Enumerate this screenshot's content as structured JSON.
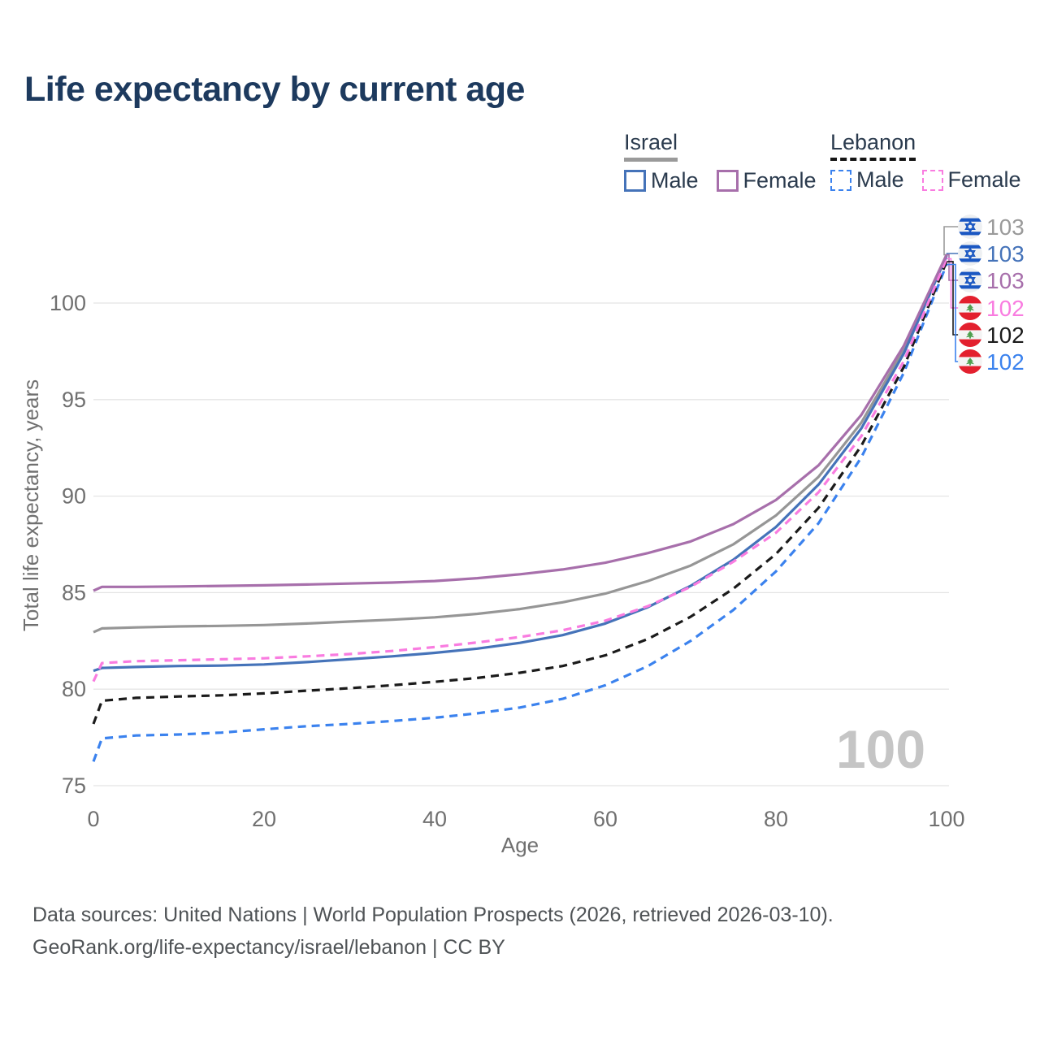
{
  "header": {
    "title": "Life expectancy by current age"
  },
  "legend": {
    "israel": {
      "label": "Israel",
      "underline_color": "#9a9a9a",
      "underline_style": "solid",
      "items": [
        {
          "label": "Male",
          "color": "#4573b9",
          "style": "solid"
        },
        {
          "label": "Female",
          "color": "#a76fab",
          "style": "solid"
        }
      ]
    },
    "lebanon": {
      "label": "Lebanon",
      "underline_color": "#151515",
      "underline_style": "dashed",
      "items": [
        {
          "label": "Male",
          "color": "#3b82ee",
          "style": "dashed"
        },
        {
          "label": "Female",
          "color": "#f97ce0",
          "style": "dashed"
        }
      ]
    }
  },
  "chart_data": {
    "type": "line",
    "title": "Life expectancy by current age",
    "xlabel": "Age",
    "ylabel": "Total life expectancy, years",
    "xlim": [
      0,
      100
    ],
    "ylim": [
      75,
      100
    ],
    "x_ticks": [
      0,
      20,
      40,
      60,
      80,
      100
    ],
    "y_ticks": [
      75,
      80,
      85,
      90,
      95,
      100
    ],
    "grid": "horizontal",
    "legend_position": "top-right",
    "watermark": "100",
    "axis_color": "#707070",
    "grid_color": "#e4e4e4",
    "watermark_color": "#c5c5c5",
    "ages": [
      0,
      1,
      5,
      10,
      15,
      20,
      25,
      30,
      35,
      40,
      45,
      50,
      55,
      60,
      65,
      70,
      75,
      80,
      85,
      90,
      95,
      100
    ],
    "series": [
      {
        "id": "israel-total",
        "name": "Israel",
        "color": "#969696",
        "dashed": false,
        "values": [
          82.95,
          83.15,
          83.2,
          83.25,
          83.28,
          83.32,
          83.4,
          83.5,
          83.6,
          83.72,
          83.9,
          84.15,
          84.5,
          84.95,
          85.6,
          86.4,
          87.5,
          89.0,
          91.0,
          93.8,
          97.6,
          102.5
        ]
      },
      {
        "id": "israel-male",
        "name": "Israel Male",
        "color": "#4573b9",
        "dashed": false,
        "values": [
          80.95,
          81.1,
          81.15,
          81.2,
          81.22,
          81.28,
          81.4,
          81.55,
          81.7,
          81.88,
          82.1,
          82.4,
          82.8,
          83.4,
          84.25,
          85.35,
          86.7,
          88.4,
          90.6,
          93.5,
          97.4,
          102.45
        ]
      },
      {
        "id": "lebanon-male",
        "name": "Lebanon Male",
        "color": "#3b82ee",
        "dashed": true,
        "values": [
          76.25,
          77.45,
          77.6,
          77.65,
          77.75,
          77.92,
          78.08,
          78.2,
          78.35,
          78.52,
          78.75,
          79.05,
          79.5,
          80.2,
          81.2,
          82.5,
          84.1,
          86.1,
          88.6,
          92.0,
          96.4,
          102.0
        ]
      },
      {
        "id": "lebanon-total",
        "name": "Lebanon",
        "color": "#1b1b1b",
        "dashed": true,
        "values": [
          78.2,
          79.4,
          79.55,
          79.62,
          79.68,
          79.78,
          79.92,
          80.05,
          80.2,
          80.38,
          80.58,
          80.85,
          81.2,
          81.75,
          82.6,
          83.75,
          85.2,
          87.0,
          89.4,
          92.6,
          96.7,
          102.15
        ]
      },
      {
        "id": "lebanon-female",
        "name": "Lebanon Female",
        "color": "#f97ce0",
        "dashed": true,
        "values": [
          80.4,
          81.35,
          81.45,
          81.5,
          81.55,
          81.6,
          81.7,
          81.82,
          81.98,
          82.18,
          82.42,
          82.7,
          83.05,
          83.55,
          84.3,
          85.3,
          86.6,
          88.1,
          90.2,
          93.1,
          97.0,
          102.3
        ]
      },
      {
        "id": "israel-female",
        "name": "Israel Female",
        "color": "#a76fab",
        "dashed": false,
        "values": [
          85.1,
          85.3,
          85.3,
          85.32,
          85.35,
          85.38,
          85.42,
          85.47,
          85.52,
          85.6,
          85.75,
          85.95,
          86.2,
          86.55,
          87.05,
          87.65,
          88.55,
          89.8,
          91.6,
          94.2,
          97.8,
          102.5
        ]
      }
    ],
    "end_labels": [
      {
        "series": "israel-total",
        "value": "103",
        "color": "#9a9a9a",
        "flag": "israel"
      },
      {
        "series": "israel-male",
        "value": "103",
        "color": "#4573b9",
        "flag": "israel"
      },
      {
        "series": "israel-female",
        "value": "103",
        "color": "#a76fab",
        "flag": "israel"
      },
      {
        "series": "lebanon-female",
        "value": "102",
        "color": "#f97ce0",
        "flag": "lebanon"
      },
      {
        "series": "lebanon-total",
        "value": "102",
        "color": "#1b1b1b",
        "flag": "lebanon"
      },
      {
        "series": "lebanon-male",
        "value": "102",
        "color": "#3b82ee",
        "flag": "lebanon"
      }
    ]
  },
  "footer": {
    "line1": "Data sources: United Nations | World Population Prospects (2026, retrieved 2026-03-10).",
    "line2": "GeoRank.org/life-expectancy/israel/lebanon | CC BY"
  }
}
